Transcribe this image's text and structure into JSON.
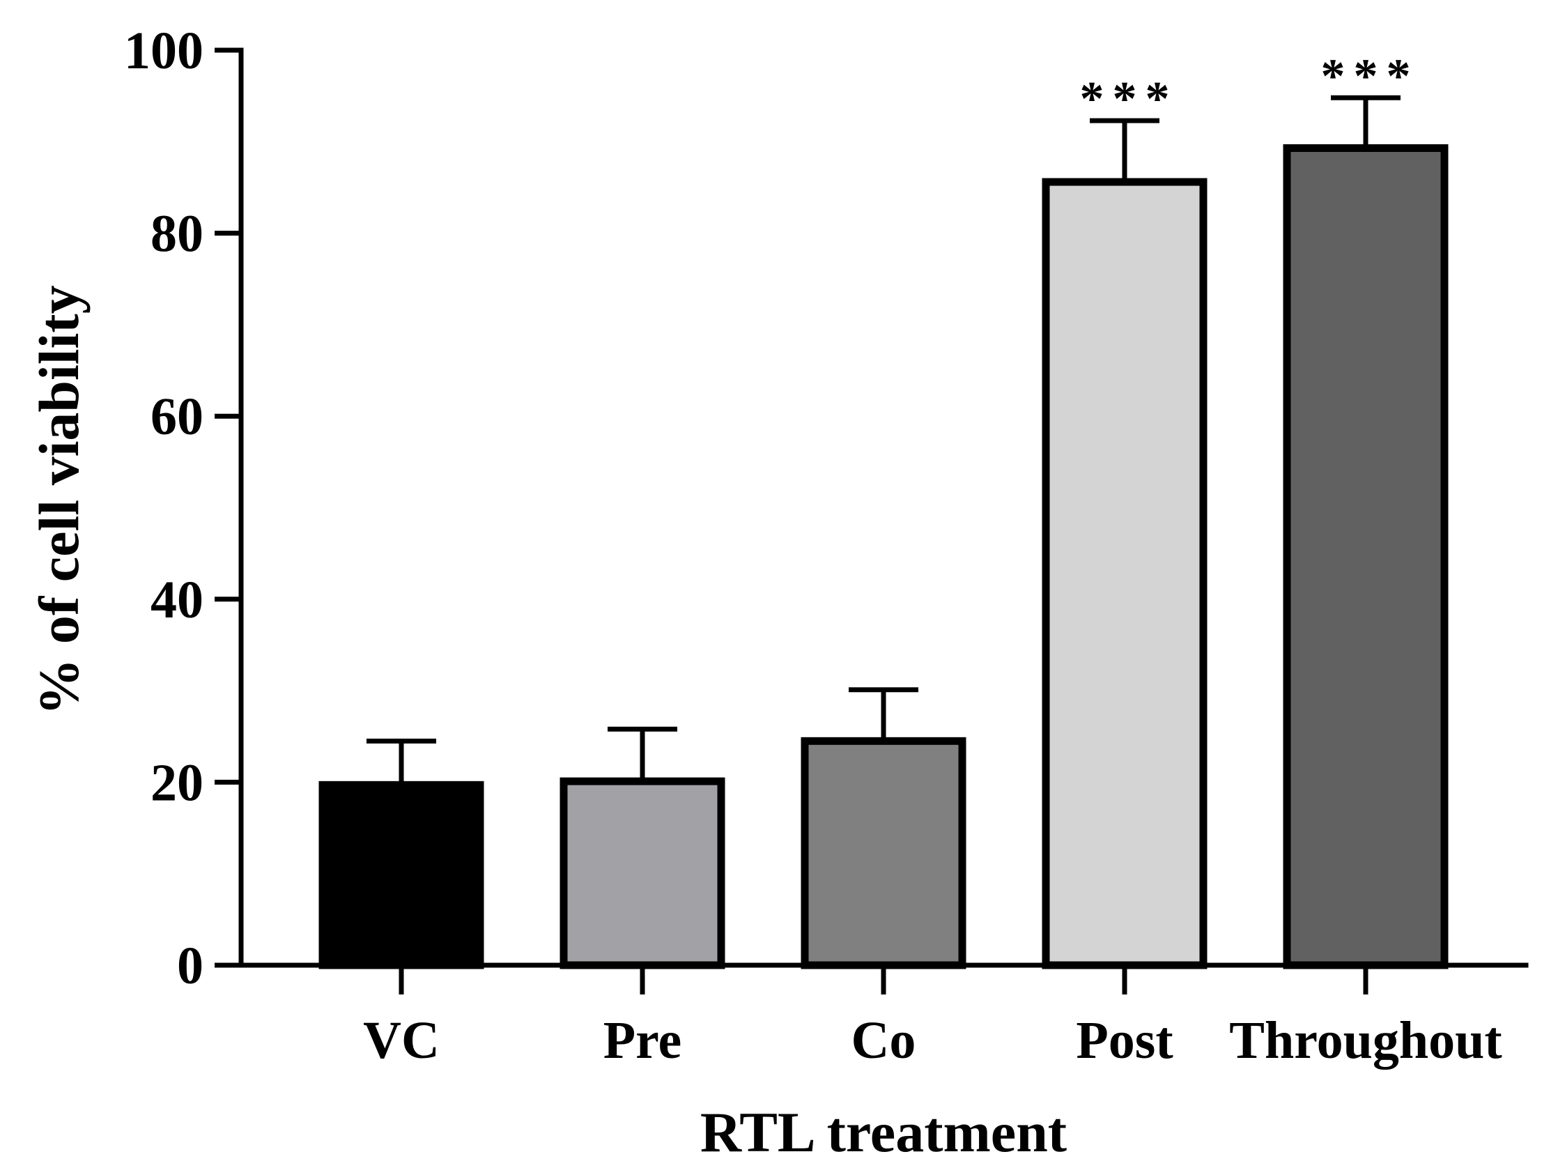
{
  "chart_data": {
    "type": "bar",
    "title": "",
    "xlabel": "RTL treatment",
    "ylabel": "% of cell viability",
    "ylim": [
      0,
      100
    ],
    "yticks": [
      0,
      20,
      40,
      60,
      80,
      100
    ],
    "grid": false,
    "categories": [
      "VC",
      "Pre",
      "Co",
      "Post",
      "Throughout"
    ],
    "values": [
      19.7,
      20.1,
      24.5,
      85.6,
      89.3
    ],
    "error_upper": [
      4.8,
      5.7,
      5.6,
      6.7,
      5.5
    ],
    "significance": [
      "",
      "",
      "",
      "***",
      "***"
    ],
    "bar_colors": [
      "#000000",
      "#a2a2a6",
      "#808080",
      "#d4d4d4",
      "#616161"
    ]
  }
}
